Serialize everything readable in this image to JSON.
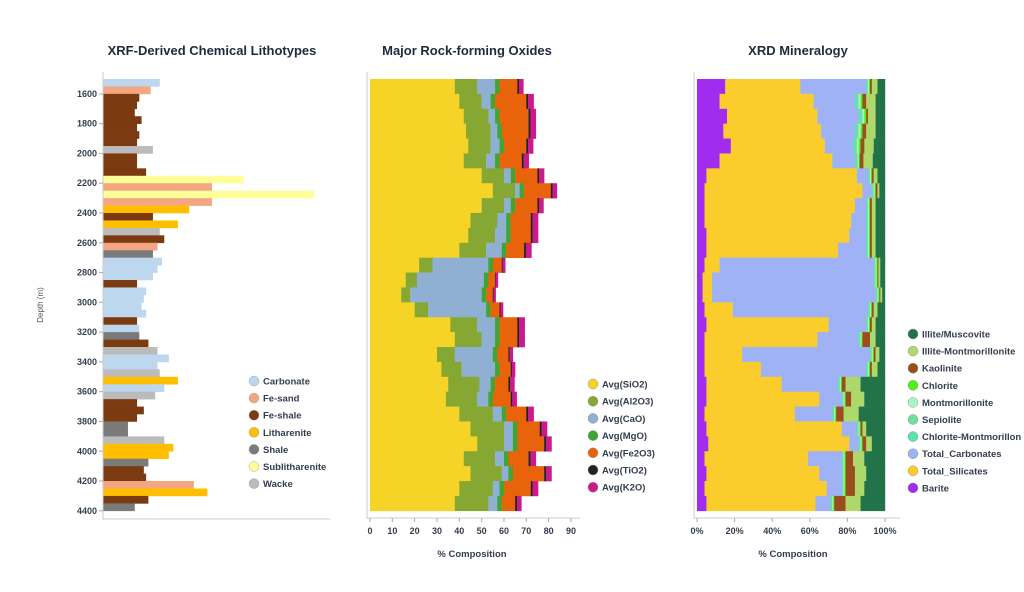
{
  "chart_data": [
    {
      "type": "bar",
      "orientation": "horizontal",
      "title": "XRF-Derived Chemical Lithotypes",
      "ylabel": "Depth (m)",
      "xlabel": "",
      "ylim": [
        1500,
        4450
      ],
      "yticks": [
        "1600",
        "1800",
        "2000",
        "2200",
        "2400",
        "2600",
        "2800",
        "3000",
        "3200",
        "3400",
        "3600",
        "3800",
        "4000",
        "4200",
        "4400"
      ],
      "legend_position": "right",
      "legend": [
        "Carbonate",
        "Fe-sand",
        "Fe-shale",
        "Litharenite",
        "Shale",
        "Sublitharenite",
        "Wacke"
      ],
      "colors": {
        "Carbonate": "#bdd7ee",
        "Fe-sand": "#f4a582",
        "Fe-shale": "#7b3a10",
        "Litharenite": "#ffbf00",
        "Shale": "#7a7a7a",
        "Sublitharenite": "#ffff99",
        "Wacke": "#bbbbbb"
      },
      "interval_m": 50,
      "rows": [
        {
          "depth": 1525,
          "lith": "Carbonate",
          "value": 25
        },
        {
          "depth": 1575,
          "lith": "Fe-sand",
          "value": 21
        },
        {
          "depth": 1625,
          "lith": "Fe-shale",
          "value": 16
        },
        {
          "depth": 1675,
          "lith": "Fe-shale",
          "value": 15
        },
        {
          "depth": 1725,
          "lith": "Fe-shale",
          "value": 14
        },
        {
          "depth": 1775,
          "lith": "Fe-shale",
          "value": 17
        },
        {
          "depth": 1825,
          "lith": "Fe-shale",
          "value": 15
        },
        {
          "depth": 1875,
          "lith": "Fe-shale",
          "value": 16
        },
        {
          "depth": 1925,
          "lith": "Fe-shale",
          "value": 15
        },
        {
          "depth": 1975,
          "lith": "Wacke",
          "value": 22
        },
        {
          "depth": 2025,
          "lith": "Fe-shale",
          "value": 15
        },
        {
          "depth": 2075,
          "lith": "Fe-shale",
          "value": 15
        },
        {
          "depth": 2125,
          "lith": "Fe-shale",
          "value": 19
        },
        {
          "depth": 2175,
          "lith": "Sublitharenite",
          "value": 62
        },
        {
          "depth": 2225,
          "lith": "Fe-sand",
          "value": 48
        },
        {
          "depth": 2275,
          "lith": "Sublitharenite",
          "value": 93
        },
        {
          "depth": 2325,
          "lith": "Fe-sand",
          "value": 48
        },
        {
          "depth": 2375,
          "lith": "Litharenite",
          "value": 38
        },
        {
          "depth": 2425,
          "lith": "Fe-shale",
          "value": 22
        },
        {
          "depth": 2475,
          "lith": "Litharenite",
          "value": 33
        },
        {
          "depth": 2525,
          "lith": "Wacke",
          "value": 25
        },
        {
          "depth": 2575,
          "lith": "Fe-shale",
          "value": 27
        },
        {
          "depth": 2625,
          "lith": "Fe-sand",
          "value": 24
        },
        {
          "depth": 2675,
          "lith": "Shale",
          "value": 22
        },
        {
          "depth": 2725,
          "lith": "Carbonate",
          "value": 26
        },
        {
          "depth": 2775,
          "lith": "Carbonate",
          "value": 24
        },
        {
          "depth": 2825,
          "lith": "Carbonate",
          "value": 22
        },
        {
          "depth": 2875,
          "lith": "Fe-shale",
          "value": 15
        },
        {
          "depth": 2925,
          "lith": "Carbonate",
          "value": 19
        },
        {
          "depth": 2975,
          "lith": "Carbonate",
          "value": 18
        },
        {
          "depth": 3025,
          "lith": "Carbonate",
          "value": 17
        },
        {
          "depth": 3075,
          "lith": "Carbonate",
          "value": 19
        },
        {
          "depth": 3125,
          "lith": "Fe-shale",
          "value": 15
        },
        {
          "depth": 3175,
          "lith": "Carbonate",
          "value": 16
        },
        {
          "depth": 3225,
          "lith": "Shale",
          "value": 16
        },
        {
          "depth": 3275,
          "lith": "Fe-shale",
          "value": 20
        },
        {
          "depth": 3325,
          "lith": "Wacke",
          "value": 24
        },
        {
          "depth": 3375,
          "lith": "Carbonate",
          "value": 29
        },
        {
          "depth": 3425,
          "lith": "Carbonate",
          "value": 24
        },
        {
          "depth": 3475,
          "lith": "Wacke",
          "value": 25
        },
        {
          "depth": 3525,
          "lith": "Litharenite",
          "value": 33
        },
        {
          "depth": 3575,
          "lith": "Carbonate",
          "value": 27
        },
        {
          "depth": 3625,
          "lith": "Wacke",
          "value": 23
        },
        {
          "depth": 3675,
          "lith": "Fe-shale",
          "value": 15
        },
        {
          "depth": 3725,
          "lith": "Fe-shale",
          "value": 18
        },
        {
          "depth": 3775,
          "lith": "Fe-shale",
          "value": 15
        },
        {
          "depth": 3825,
          "lith": "Shale",
          "value": 11
        },
        {
          "depth": 3875,
          "lith": "Shale",
          "value": 11
        },
        {
          "depth": 3925,
          "lith": "Wacke",
          "value": 27
        },
        {
          "depth": 3975,
          "lith": "Litharenite",
          "value": 31
        },
        {
          "depth": 4025,
          "lith": "Litharenite",
          "value": 29
        },
        {
          "depth": 4075,
          "lith": "Shale",
          "value": 20
        },
        {
          "depth": 4125,
          "lith": "Fe-shale",
          "value": 18
        },
        {
          "depth": 4175,
          "lith": "Fe-shale",
          "value": 19
        },
        {
          "depth": 4225,
          "lith": "Fe-sand",
          "value": 40
        },
        {
          "depth": 4275,
          "lith": "Litharenite",
          "value": 46
        },
        {
          "depth": 4325,
          "lith": "Fe-shale",
          "value": 20
        },
        {
          "depth": 4375,
          "lith": "Shale",
          "value": 14
        }
      ]
    },
    {
      "type": "bar",
      "stacked": true,
      "orientation": "horizontal",
      "title": "Major Rock-forming Oxides",
      "xlabel": "% Composition",
      "xlim": [
        0,
        95
      ],
      "xticks": [
        "0",
        "10",
        "20",
        "30",
        "40",
        "50",
        "60",
        "70",
        "80",
        "90"
      ],
      "legend_position": "right",
      "interval_m": 100,
      "series": [
        {
          "name": "Avg(SiO2)",
          "color": "#f5d327"
        },
        {
          "name": "Avg(Al2O3)",
          "color": "#86a832"
        },
        {
          "name": "Avg(CaO)",
          "color": "#8fb0d3"
        },
        {
          "name": "Avg(MgO)",
          "color": "#3fa535"
        },
        {
          "name": "Avg(Fe2O3)",
          "color": "#e8630a"
        },
        {
          "name": "Avg(TiO2)",
          "color": "#222222"
        },
        {
          "name": "Avg(K2O)",
          "color": "#cc1a8c"
        }
      ],
      "depths": [
        1550,
        1650,
        1750,
        1850,
        1950,
        2050,
        2150,
        2250,
        2350,
        2450,
        2550,
        2650,
        2750,
        2850,
        2950,
        3050,
        3150,
        3250,
        3350,
        3450,
        3550,
        3650,
        3750,
        3850,
        3950,
        4050,
        4150,
        4250,
        4350
      ],
      "values": [
        [
          38,
          10,
          8,
          2,
          8,
          0.7,
          2
        ],
        [
          40,
          10,
          4,
          2,
          14,
          0.8,
          2.5
        ],
        [
          42,
          11,
          3,
          2,
          13,
          0.8,
          2.5
        ],
        [
          43,
          11,
          3,
          2,
          12,
          0.8,
          2.5
        ],
        [
          44,
          10,
          4,
          2,
          10,
          0.8,
          2.3
        ],
        [
          42,
          10,
          4,
          2,
          10,
          0.8,
          2.3
        ],
        [
          50,
          10,
          3,
          2,
          10,
          0.7,
          2.3
        ],
        [
          55,
          10,
          2,
          2,
          12,
          0.7,
          2
        ],
        [
          50,
          10,
          3,
          2,
          10,
          0.7,
          2
        ],
        [
          45,
          12,
          4,
          2,
          9,
          0.8,
          2.5
        ],
        [
          44,
          12,
          5,
          2,
          9,
          0.8,
          2.5
        ],
        [
          40,
          12,
          7,
          2,
          8,
          0.8,
          2.5
        ],
        [
          22,
          6,
          25,
          2,
          4,
          0.4,
          1.2
        ],
        [
          16,
          5,
          30,
          2,
          3,
          0.3,
          1
        ],
        [
          14,
          4,
          32,
          2,
          3,
          0.3,
          1
        ],
        [
          20,
          6,
          26,
          2,
          4,
          0.4,
          1.2
        ],
        [
          36,
          12,
          8,
          2,
          8,
          0.8,
          2.5
        ],
        [
          38,
          12,
          6,
          2,
          8,
          0.8,
          2.5
        ],
        [
          30,
          8,
          17,
          2,
          5,
          0.5,
          1.5
        ],
        [
          32,
          9,
          15,
          2,
          5,
          0.5,
          1.5
        ],
        [
          35,
          14,
          5,
          2,
          6,
          0.7,
          2
        ],
        [
          34,
          14,
          5,
          2,
          8,
          0.7,
          2
        ],
        [
          40,
          15,
          4,
          2,
          9,
          0.8,
          2.5
        ],
        [
          45,
          15,
          4,
          2,
          10,
          0.8,
          2.5
        ],
        [
          48,
          12,
          4,
          2,
          12,
          0.8,
          2.5
        ],
        [
          42,
          14,
          4,
          2,
          9,
          0.8,
          2.5
        ],
        [
          45,
          14,
          3,
          2,
          14,
          0.8,
          2.5
        ],
        [
          40,
          15,
          3,
          2,
          12,
          0.8,
          2.5
        ],
        [
          38,
          15,
          4,
          2,
          6,
          0.8,
          2
        ]
      ]
    },
    {
      "type": "bar",
      "stacked": true,
      "normalized": true,
      "orientation": "horizontal",
      "title": "XRD Mineralogy",
      "xlabel": "% Composition",
      "xlim": [
        0,
        100
      ],
      "xticks": [
        "0%",
        "20%",
        "40%",
        "60%",
        "80%",
        "100%"
      ],
      "legend_position": "right",
      "interval_m": 100,
      "series": [
        {
          "name": "Barite",
          "color": "#a12cf0"
        },
        {
          "name": "Total_Silicates",
          "color": "#fbcd2c"
        },
        {
          "name": "Total_Carbonates",
          "color": "#9fb2f6"
        },
        {
          "name": "Chlorite-Montmorillon",
          "color": "#5fe0a8"
        },
        {
          "name": "Sepiolite",
          "color": "#6de0a0"
        },
        {
          "name": "Montmorillonite",
          "color": "#aaf5c8"
        },
        {
          "name": "Chlorite",
          "color": "#4fef1a"
        },
        {
          "name": "Kaolinite",
          "color": "#9a4e1e"
        },
        {
          "name": "Illite-Montmorillonite",
          "color": "#aed86a"
        },
        {
          "name": "Illite/Muscovite",
          "color": "#22734a"
        }
      ],
      "legend_order": [
        "Illite/Muscovite",
        "Illite-Montmorillonite",
        "Kaolinite",
        "Chlorite",
        "Montmorillonite",
        "Sepiolite",
        "Chlorite-Montmorillon",
        "Total_Carbonates",
        "Total_Silicates",
        "Barite"
      ],
      "depths": [
        1550,
        1650,
        1750,
        1850,
        1950,
        2050,
        2150,
        2250,
        2350,
        2450,
        2550,
        2650,
        2750,
        2850,
        2950,
        3050,
        3150,
        3250,
        3350,
        3450,
        3550,
        3650,
        3750,
        3850,
        3950,
        4050,
        4150,
        4250,
        4350
      ],
      "values": [
        [
          15,
          40,
          35,
          0.5,
          0.5,
          0.5,
          0.5,
          1,
          3,
          4
        ],
        [
          12,
          50,
          22,
          1,
          1,
          1,
          1,
          2,
          5,
          5
        ],
        [
          16,
          48,
          22,
          1,
          1,
          1,
          1,
          1,
          4,
          5
        ],
        [
          14,
          52,
          18,
          1,
          1,
          1,
          1,
          2,
          5,
          5
        ],
        [
          18,
          50,
          15,
          1,
          1,
          1,
          1,
          2,
          5,
          6
        ],
        [
          12,
          60,
          12,
          1,
          0.5,
          0.5,
          0.5,
          2,
          5,
          6.5
        ],
        [
          5,
          80,
          6,
          0.5,
          0.5,
          0.5,
          0.5,
          1,
          2,
          4
        ],
        [
          4,
          84,
          5,
          0.5,
          0.5,
          0.5,
          0.5,
          1,
          1,
          3
        ],
        [
          4,
          80,
          6,
          0.5,
          0.5,
          0.5,
          0.5,
          1,
          2,
          5
        ],
        [
          4,
          78,
          8,
          0.5,
          0.5,
          0.5,
          0.5,
          1,
          2,
          5
        ],
        [
          5,
          76,
          9,
          0.5,
          0.5,
          0.5,
          0.5,
          1,
          2,
          5
        ],
        [
          5,
          70,
          15,
          0.5,
          0.5,
          0.5,
          0.5,
          1,
          2,
          5
        ],
        [
          4,
          8,
          82,
          0.5,
          0.5,
          0.5,
          0.5,
          0.5,
          1,
          2.5
        ],
        [
          3,
          5,
          86,
          0.5,
          0.5,
          0.5,
          0.5,
          0.5,
          1,
          2.5
        ],
        [
          3,
          5,
          87,
          0.5,
          0.5,
          0.5,
          0.5,
          0.5,
          1,
          1.5
        ],
        [
          4,
          15,
          72,
          0.5,
          0.5,
          0.5,
          0.5,
          1,
          2,
          4
        ],
        [
          5,
          65,
          20,
          0.5,
          0.5,
          0.5,
          0.5,
          1,
          2,
          5
        ],
        [
          4,
          60,
          22,
          0.5,
          0.5,
          0.5,
          0.5,
          4,
          3,
          5
        ],
        [
          4,
          20,
          68,
          0.5,
          0.5,
          0.5,
          0.5,
          1,
          2,
          3
        ],
        [
          4,
          30,
          56,
          0.5,
          0.5,
          0.5,
          0.5,
          1,
          3,
          4
        ],
        [
          5,
          40,
          30,
          0.5,
          0.5,
          0.5,
          0.5,
          2,
          8,
          13
        ],
        [
          5,
          60,
          12,
          0.5,
          0.5,
          0.5,
          0.5,
          3,
          7,
          11
        ],
        [
          4,
          48,
          20,
          0.5,
          0.5,
          0.5,
          0.5,
          4,
          8,
          14
        ],
        [
          5,
          72,
          8,
          0.5,
          0.5,
          0.5,
          0.5,
          1,
          2,
          10
        ],
        [
          6,
          75,
          5,
          0.5,
          0.5,
          0.5,
          0.5,
          2,
          3,
          7
        ],
        [
          4,
          55,
          18,
          0.5,
          0.5,
          0.5,
          0.5,
          4,
          6,
          11
        ],
        [
          5,
          60,
          12,
          0.5,
          0.5,
          0.5,
          0.5,
          5,
          6,
          10
        ],
        [
          4,
          65,
          8,
          0.5,
          0.5,
          0.5,
          0.5,
          5,
          5,
          11
        ],
        [
          5,
          58,
          8,
          0.5,
          0.5,
          0.5,
          0.5,
          6,
          8,
          13
        ]
      ]
    }
  ]
}
